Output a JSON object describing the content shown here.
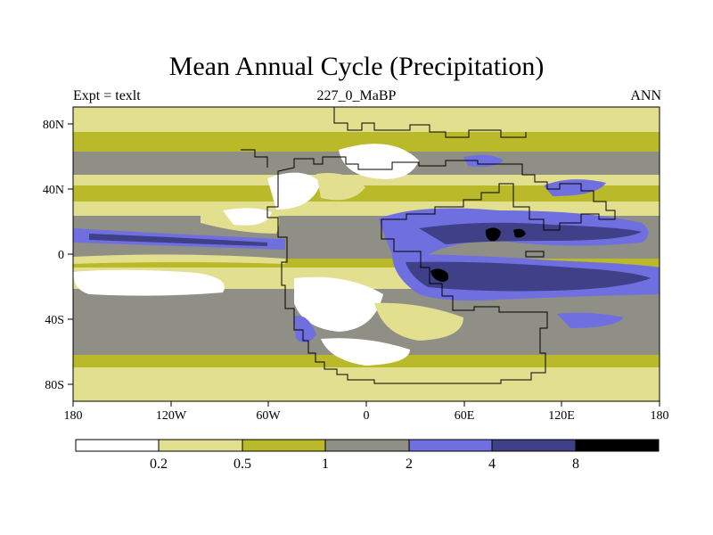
{
  "title": "Mean Annual Cycle (Precipitation)",
  "subtitle_left": "Expt = texlt",
  "subtitle_center": "227_0_MaBP",
  "subtitle_right": "ANN",
  "colors": {
    "c0": "#ffffff",
    "c1": "#e2e08f",
    "c2": "#b9b92a",
    "c3": "#8f8f85",
    "c4": "#6f6fe0",
    "c5": "#404088",
    "c6": "#000000"
  },
  "chart_data": {
    "type": "heatmap",
    "title": "Mean Annual Cycle (Precipitation)",
    "xlim": [
      -180,
      180
    ],
    "ylim": [
      -90,
      90
    ],
    "lat_ticks": [
      "80N",
      "40N",
      "0",
      "40S",
      "80S"
    ],
    "lon_ticks": [
      "180",
      "120W",
      "60W",
      "0",
      "60E",
      "120E",
      "180"
    ],
    "colorbar": {
      "levels": [
        "0.2",
        "0.5",
        "1",
        "2",
        "4",
        "8"
      ],
      "bins": 7
    }
  }
}
